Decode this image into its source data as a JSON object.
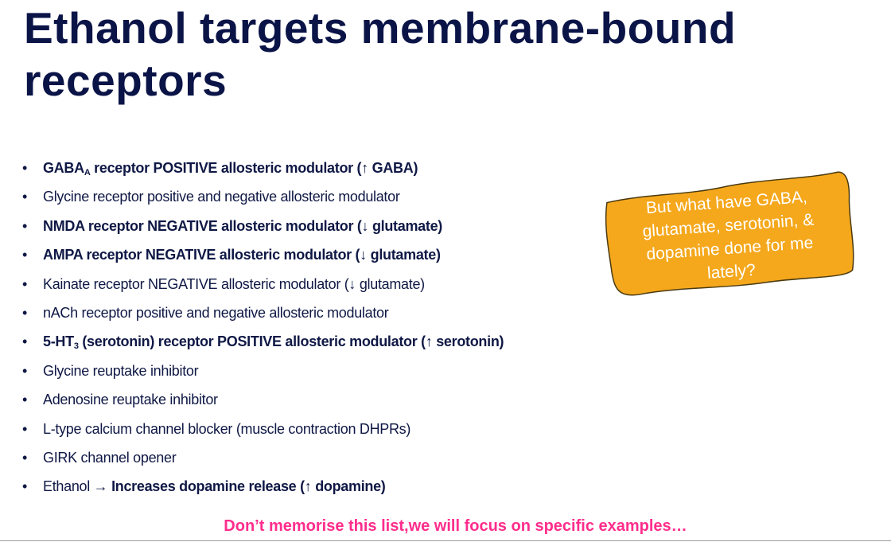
{
  "title": "Ethanol targets membrane-bound receptors",
  "bullets": [
    [
      {
        "t": "GABA",
        "b": true
      },
      {
        "t": "A",
        "b": true,
        "sub": true
      },
      {
        "t": " receptor POSITIVE allosteric modulator (↑ GABA)",
        "b": true
      }
    ],
    [
      {
        "t": "Glycine receptor positive and negative allosteric modulator"
      }
    ],
    [
      {
        "t": "NMDA receptor NEGATIVE allosteric modulator (↓ glutamate)",
        "b": true
      }
    ],
    [
      {
        "t": "AMPA receptor NEGATIVE allosteric modulator (↓ glutamate)",
        "b": true
      }
    ],
    [
      {
        "t": "Kainate receptor NEGATIVE allosteric modulator (↓ glutamate)"
      }
    ],
    [
      {
        "t": "nACh receptor positive and negative allosteric modulator"
      }
    ],
    [
      {
        "t": "5-HT",
        "b": true
      },
      {
        "t": "3",
        "b": true,
        "sub": true
      },
      {
        "t": " (serotonin) receptor POSITIVE allosteric modulator (↑ serotonin)",
        "b": true
      }
    ],
    [
      {
        "t": "Glycine reuptake inhibitor"
      }
    ],
    [
      {
        "t": "Adenosine reuptake inhibitor"
      }
    ],
    [
      {
        "t": "L-type calcium channel blocker (muscle contraction DHPRs)"
      }
    ],
    [
      {
        "t": "GIRK channel opener"
      }
    ],
    [
      {
        "t": "Ethanol → "
      },
      {
        "t": "Increases dopamine release (↑ dopamine)",
        "b": true
      }
    ]
  ],
  "callout": {
    "text": "But what have GABA, glutamate, serotonin, & dopamine done for me lately?",
    "color": "#f5a81c"
  },
  "footer": "Don’t memorise this list,we will focus on specific examples…",
  "colors": {
    "text": "#0f1845",
    "footer": "#ff2d8c"
  }
}
